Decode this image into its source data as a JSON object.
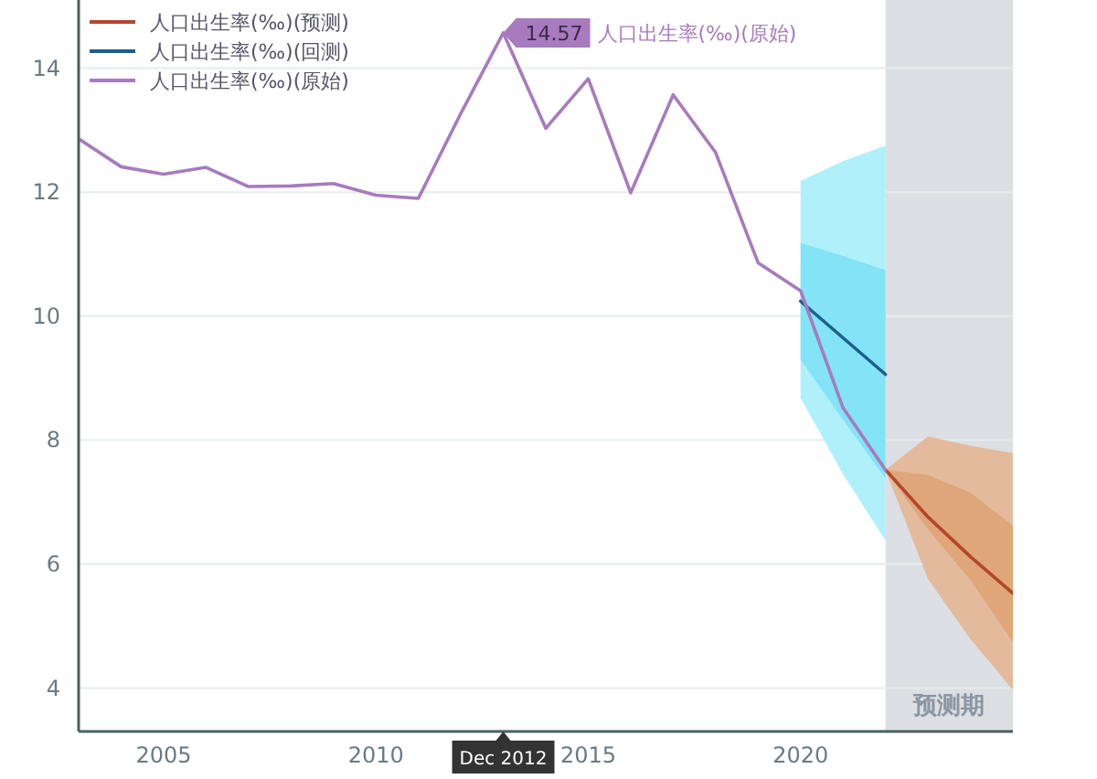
{
  "chart_data": {
    "type": "line",
    "xlim": [
      "2002-12-31",
      "2024-12-31"
    ],
    "ylim": [
      3.3,
      15.1
    ],
    "xticks": [
      {
        "value": "2005-01-01",
        "label": "2005"
      },
      {
        "value": "2010-01-01",
        "label": "2010"
      },
      {
        "value": "2015-01-01",
        "label": "2015"
      },
      {
        "value": "2020-01-01",
        "label": "2020"
      }
    ],
    "yticks": [
      4,
      6,
      8,
      10,
      12,
      14
    ],
    "grid": "y",
    "legend": "top left",
    "bands": [
      {
        "axis": "x",
        "from": "2021-12-31",
        "to": "2024-12-31",
        "label": "预测期",
        "color": "#dcdfe3"
      }
    ],
    "series": [
      {
        "color": "#b0f0fa",
        "x": [
          "2019-12-31",
          "2020-12-31",
          "2021-12-31"
        ],
        "values": [
          null,
          null,
          null
        ],
        "lower": [
          8.68,
          7.45,
          6.38
        ],
        "upper": [
          12.18,
          12.5,
          12.75
        ]
      },
      {
        "color": "#82e4f6",
        "x": [
          "2019-12-31",
          "2020-12-31",
          "2021-12-31"
        ],
        "values": [
          null,
          null,
          null
        ],
        "lower": [
          9.3,
          8.33,
          7.38
        ],
        "upper": [
          11.18,
          10.97,
          10.74
        ]
      },
      {
        "color": "#e3bb9c",
        "x": [
          "2021-12-31",
          "2022-12-31",
          "2023-12-31",
          "2024-12-31"
        ],
        "values": [
          null,
          null,
          null,
          null
        ],
        "lower": [
          7.52,
          5.76,
          4.79,
          3.97
        ],
        "upper": [
          7.52,
          8.06,
          7.91,
          7.79
        ]
      },
      {
        "color": "#dea679",
        "x": [
          "2021-12-31",
          "2022-12-31",
          "2023-12-31",
          "2024-12-31"
        ],
        "values": [
          null,
          null,
          null,
          null
        ],
        "lower": [
          7.52,
          6.56,
          5.74,
          4.74
        ],
        "upper": [
          7.52,
          7.44,
          7.15,
          6.62
        ]
      },
      {
        "name": "人口出生率(‰)(预测)",
        "color": "#b5462a",
        "x": [
          "2021-12-31",
          "2022-12-31",
          "2023-12-31",
          "2024-12-31"
        ],
        "values": [
          7.52,
          6.76,
          6.12,
          5.53
        ]
      },
      {
        "name": "人口出生率(‰)(回测)",
        "color": "#1f5f8f",
        "x": [
          "2019-12-31",
          "2020-12-31",
          "2021-12-31"
        ],
        "values": [
          10.24,
          9.65,
          9.06
        ]
      },
      {
        "name": "人口出生率(‰)(原始)",
        "color": "#a77bbd",
        "x": [
          "2002-12-31",
          "2003-12-31",
          "2004-12-31",
          "2005-12-31",
          "2006-12-31",
          "2007-12-31",
          "2008-12-31",
          "2009-12-31",
          "2010-12-31",
          "2011-12-31",
          "2012-12-31",
          "2013-12-31",
          "2014-12-31",
          "2015-12-31",
          "2016-12-31",
          "2017-12-31",
          "2018-12-31",
          "2019-12-31",
          "2020-12-31",
          "2021-12-31"
        ],
        "values": [
          12.86,
          12.41,
          12.29,
          12.4,
          12.09,
          12.1,
          12.14,
          11.95,
          11.9,
          13.27,
          14.57,
          13.03,
          13.83,
          11.99,
          13.57,
          12.64,
          10.86,
          10.41,
          8.52,
          7.52
        ]
      }
    ],
    "annotations": [
      {
        "text": "14.57 人口出生率(‰)(原始)",
        "x": "2012-12-31",
        "y": 14.57
      },
      "Dec 2012"
    ]
  }
}
